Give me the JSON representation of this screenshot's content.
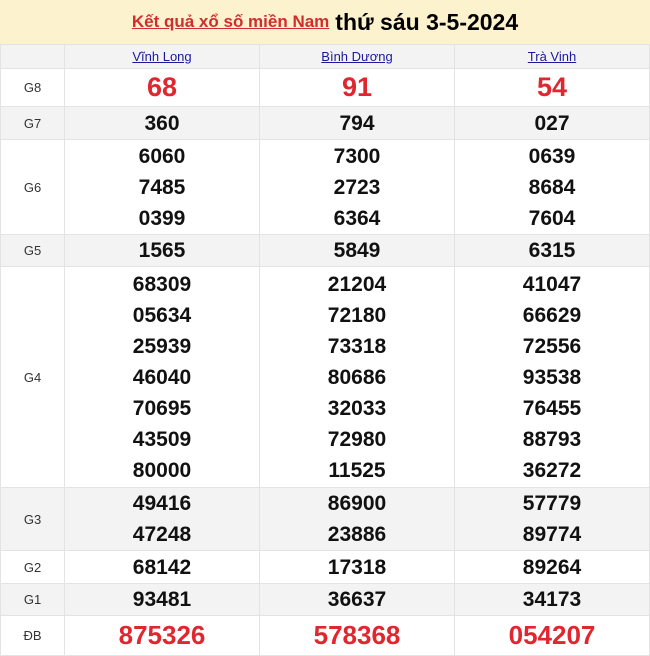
{
  "header": {
    "link": "Kết quả xổ số miền Nam",
    "date": "thứ sáu 3-5-2024"
  },
  "provinces": [
    "Vĩnh Long",
    "Bình Dương",
    "Trà Vinh"
  ],
  "rows": [
    {
      "label": "G8",
      "values": [
        [
          "68"
        ],
        [
          "91"
        ],
        [
          "54"
        ]
      ]
    },
    {
      "label": "G7",
      "values": [
        [
          "360"
        ],
        [
          "794"
        ],
        [
          "027"
        ]
      ]
    },
    {
      "label": "G6",
      "values": [
        [
          "6060",
          "7485",
          "0399"
        ],
        [
          "7300",
          "2723",
          "6364"
        ],
        [
          "0639",
          "8684",
          "7604"
        ]
      ]
    },
    {
      "label": "G5",
      "values": [
        [
          "1565"
        ],
        [
          "5849"
        ],
        [
          "6315"
        ]
      ]
    },
    {
      "label": "G4",
      "values": [
        [
          "68309",
          "05634",
          "25939",
          "46040",
          "70695",
          "43509",
          "80000"
        ],
        [
          "21204",
          "72180",
          "73318",
          "80686",
          "32033",
          "72980",
          "11525"
        ],
        [
          "41047",
          "66629",
          "72556",
          "93538",
          "76455",
          "88793",
          "36272"
        ]
      ]
    },
    {
      "label": "G3",
      "values": [
        [
          "49416",
          "47248"
        ],
        [
          "86900",
          "23886"
        ],
        [
          "57779",
          "89774"
        ]
      ]
    },
    {
      "label": "G2",
      "values": [
        [
          "68142"
        ],
        [
          "17318"
        ],
        [
          "89264"
        ]
      ]
    },
    {
      "label": "G1",
      "values": [
        [
          "93481"
        ],
        [
          "36637"
        ],
        [
          "34173"
        ]
      ]
    },
    {
      "label": "ĐB",
      "values": [
        [
          "875326"
        ],
        [
          "578368"
        ],
        [
          "054207"
        ]
      ]
    }
  ],
  "colors": {
    "red": "#e0262e",
    "header_bg": "#fcf2ce",
    "link": "#1a1a9a"
  }
}
